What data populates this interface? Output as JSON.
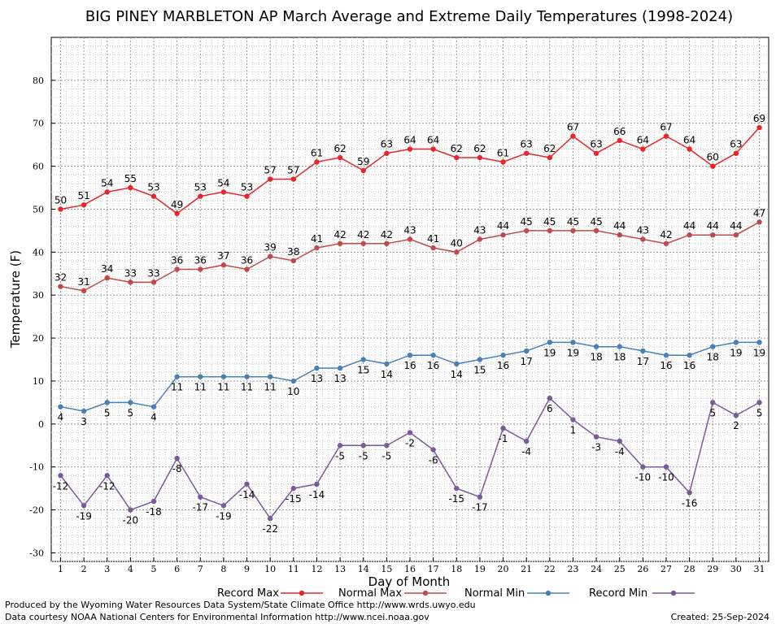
{
  "chart_data": {
    "type": "line",
    "title": "BIG PINEY MARBLETON AP March Average and Extreme Daily Temperatures (1998-2024)",
    "xlabel": "Day of Month",
    "ylabel": "Temperature (F)",
    "x": [
      1,
      2,
      3,
      4,
      5,
      6,
      7,
      8,
      9,
      10,
      11,
      12,
      13,
      14,
      15,
      16,
      17,
      18,
      19,
      20,
      21,
      22,
      23,
      24,
      25,
      26,
      27,
      28,
      29,
      30,
      31
    ],
    "xlim": [
      0.6,
      31.4
    ],
    "ylim": [
      -32,
      90
    ],
    "yticks": [
      -30,
      -20,
      -10,
      0,
      10,
      20,
      30,
      40,
      50,
      60,
      70,
      80
    ],
    "grid": true,
    "series": [
      {
        "name": "Record Max",
        "color": "#e8262a",
        "values": [
          50,
          51,
          54,
          55,
          53,
          49,
          53,
          54,
          53,
          57,
          57,
          61,
          62,
          59,
          63,
          64,
          64,
          62,
          62,
          61,
          63,
          62,
          67,
          63,
          66,
          64,
          67,
          64,
          60,
          63,
          69
        ]
      },
      {
        "name": "Normal Max",
        "color": "#c04a4a",
        "values": [
          32,
          31,
          34,
          33,
          33,
          36,
          36,
          37,
          36,
          39,
          38,
          41,
          42,
          42,
          42,
          43,
          41,
          40,
          43,
          44,
          45,
          45,
          45,
          45,
          44,
          43,
          42,
          44,
          44,
          44,
          47
        ]
      },
      {
        "name": "Normal Min",
        "color": "#4a80b8",
        "values": [
          4,
          3,
          5,
          5,
          4,
          11,
          11,
          11,
          11,
          11,
          10,
          13,
          13,
          15,
          14,
          16,
          16,
          14,
          15,
          16,
          17,
          19,
          19,
          18,
          18,
          17,
          16,
          16,
          18,
          19,
          19
        ]
      },
      {
        "name": "Record Min",
        "color": "#7a5a9a",
        "values": [
          -12,
          -19,
          -12,
          -20,
          -18,
          -8,
          -17,
          -19,
          -14,
          -22,
          -15,
          -14,
          -5,
          -5,
          -5,
          -2,
          -6,
          -15,
          -17,
          -1,
          -4,
          6,
          1,
          -3,
          -4,
          -10,
          -10,
          -16,
          5,
          2,
          5
        ]
      }
    ]
  },
  "credits": {
    "left_line1": "Produced by the Wyoming Water Resources Data System/State Climate Office http://www.wrds.uwyo.edu",
    "left_line2": "Data courtesy NOAA National Centers for Environmental Information http://www.ncei.noaa.gov",
    "created": "Created:  25-Sep-2024"
  }
}
